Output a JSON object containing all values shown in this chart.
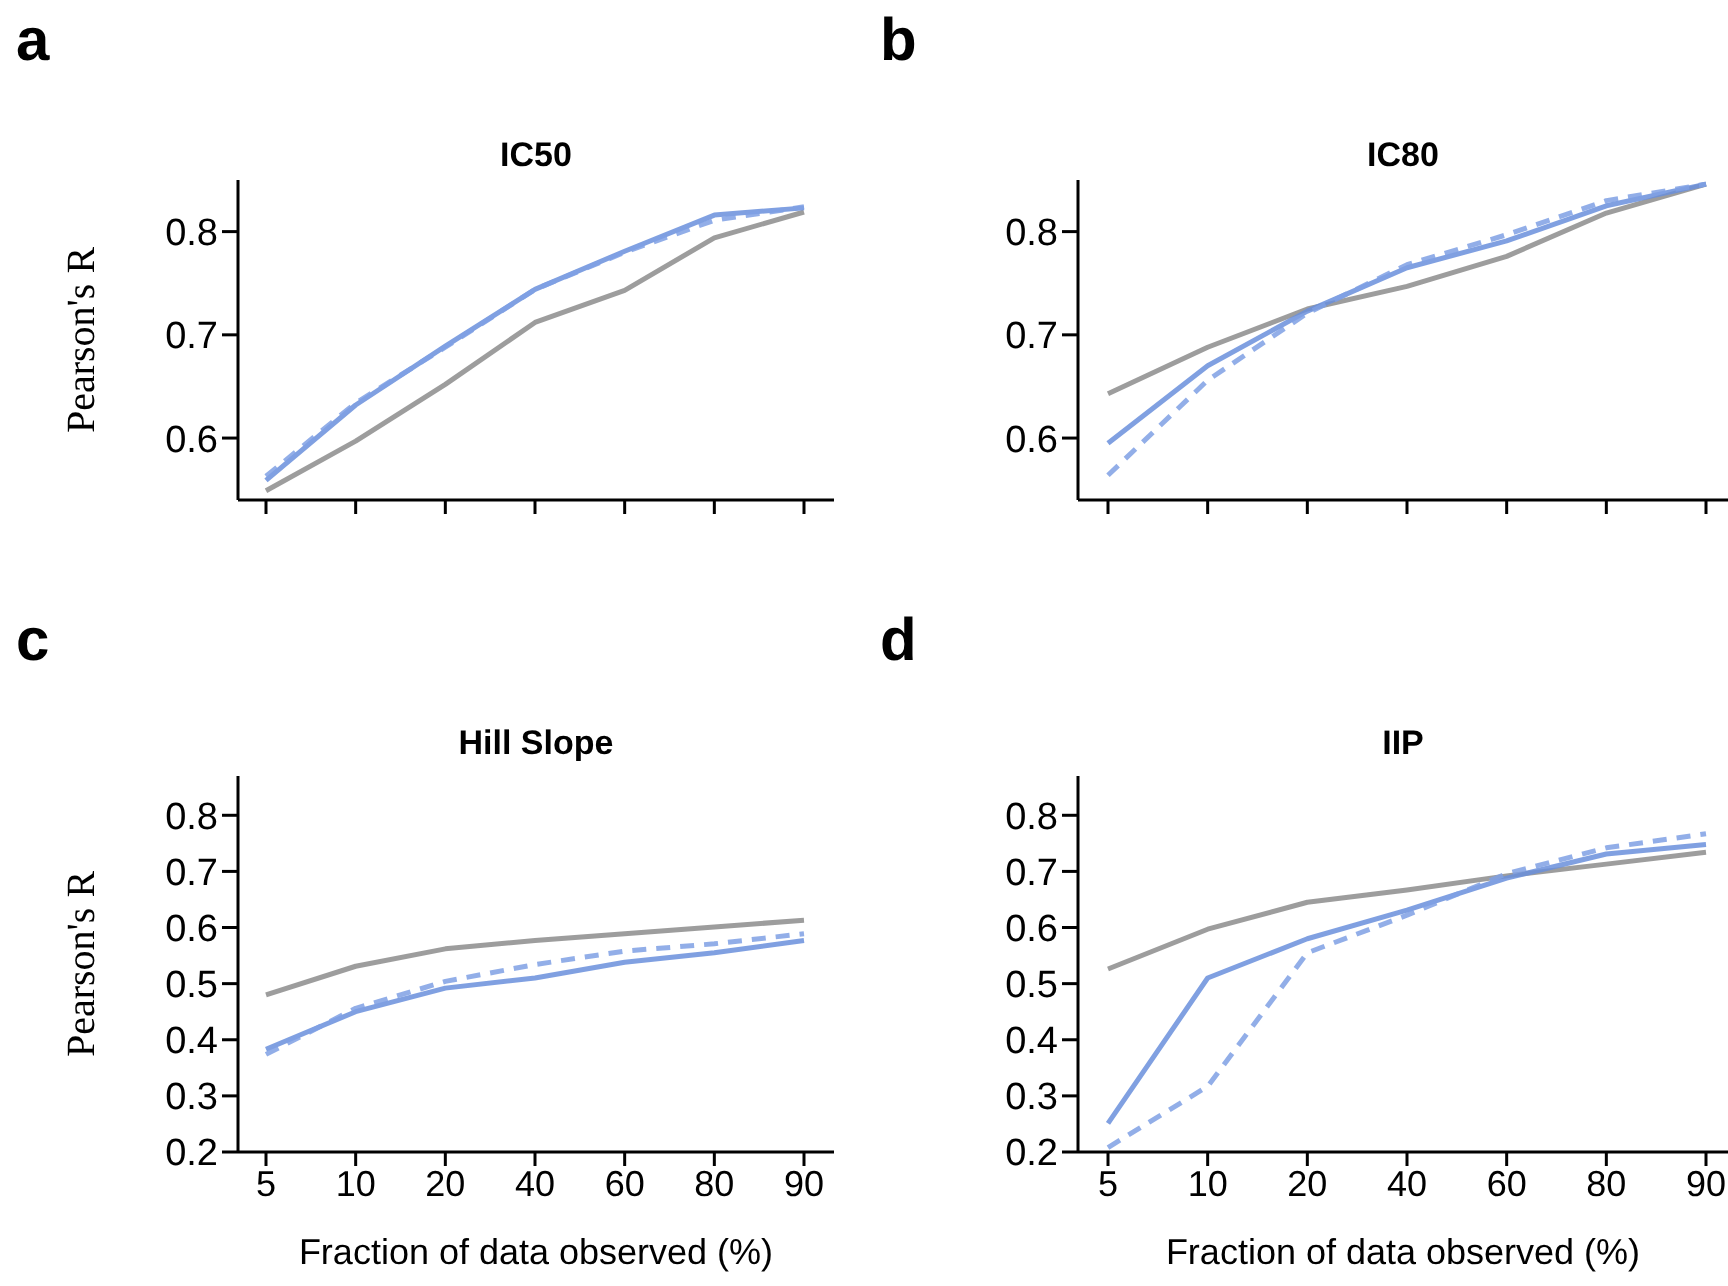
{
  "chart_data": [
    {
      "type": "line",
      "title": "IC50",
      "ylabel": "Pearson's R",
      "annotations": [
        "a"
      ],
      "categories": [
        "5",
        "10",
        "20",
        "40",
        "60",
        "80",
        "90"
      ],
      "ylim": [
        0.54,
        0.85
      ],
      "yticks": [
        0.6,
        0.7,
        0.8
      ],
      "tick_labels": "y",
      "marker": "none",
      "grid": false,
      "legend": false,
      "series": [
        {
          "color": "#8c8c8c",
          "line_style": "solid",
          "values": [
            0.549,
            0.597,
            0.652,
            0.712,
            0.743,
            0.794,
            0.819
          ]
        },
        {
          "color": "#6a8fdc",
          "line_style": "solid",
          "values": [
            0.559,
            0.632,
            0.689,
            0.744,
            0.781,
            0.816,
            0.823
          ]
        },
        {
          "color": "#7fa0e4",
          "line_style": "dashed",
          "values": [
            0.563,
            0.634,
            0.688,
            0.744,
            0.78,
            0.811,
            0.824
          ]
        }
      ]
    },
    {
      "type": "line",
      "title": "IC80",
      "annotations": [
        "b"
      ],
      "categories": [
        "5",
        "10",
        "20",
        "40",
        "60",
        "80",
        "90"
      ],
      "ylim": [
        0.54,
        0.85
      ],
      "yticks": [
        0.6,
        0.7,
        0.8
      ],
      "tick_labels": "y",
      "marker": "none",
      "grid": false,
      "legend": false,
      "series": [
        {
          "color": "#8c8c8c",
          "line_style": "solid",
          "values": [
            0.643,
            0.688,
            0.725,
            0.747,
            0.776,
            0.818,
            0.846
          ]
        },
        {
          "color": "#6a8fdc",
          "line_style": "solid",
          "values": [
            0.595,
            0.67,
            0.723,
            0.765,
            0.791,
            0.825,
            0.846
          ]
        },
        {
          "color": "#7fa0e4",
          "line_style": "dashed",
          "values": [
            0.564,
            0.656,
            0.721,
            0.768,
            0.797,
            0.83,
            0.846
          ]
        }
      ]
    },
    {
      "type": "line",
      "title": "Hill Slope",
      "xlabel": "Fraction of data observed (%)",
      "ylabel": "Pearson's R",
      "annotations": [
        "c"
      ],
      "categories": [
        "5",
        "10",
        "20",
        "40",
        "60",
        "80",
        "90"
      ],
      "ylim": [
        0.2,
        0.87
      ],
      "yticks": [
        0.2,
        0.3,
        0.4,
        0.5,
        0.6,
        0.7,
        0.8
      ],
      "marker": "none",
      "grid": false,
      "legend": false,
      "series": [
        {
          "color": "#8c8c8c",
          "line_style": "solid",
          "values": [
            0.48,
            0.531,
            0.562,
            0.577,
            0.589,
            0.601,
            0.613
          ]
        },
        {
          "color": "#6a8fdc",
          "line_style": "solid",
          "values": [
            0.383,
            0.45,
            0.492,
            0.51,
            0.538,
            0.555,
            0.577
          ]
        },
        {
          "color": "#7fa0e4",
          "line_style": "dashed",
          "values": [
            0.374,
            0.456,
            0.504,
            0.534,
            0.558,
            0.571,
            0.589
          ]
        }
      ]
    },
    {
      "type": "line",
      "title": "IIP",
      "xlabel": "Fraction of data observed (%)",
      "annotations": [
        "d"
      ],
      "categories": [
        "5",
        "10",
        "20",
        "40",
        "60",
        "80",
        "90"
      ],
      "ylim": [
        0.2,
        0.87
      ],
      "yticks": [
        0.2,
        0.3,
        0.4,
        0.5,
        0.6,
        0.7,
        0.8
      ],
      "marker": "none",
      "grid": false,
      "legend": false,
      "series": [
        {
          "color": "#8c8c8c",
          "line_style": "solid",
          "values": [
            0.526,
            0.597,
            0.645,
            0.667,
            0.692,
            0.713,
            0.734
          ]
        },
        {
          "color": "#6a8fdc",
          "line_style": "solid",
          "values": [
            0.251,
            0.51,
            0.58,
            0.631,
            0.688,
            0.731,
            0.748
          ]
        },
        {
          "color": "#7fa0e4",
          "line_style": "dashed",
          "values": [
            0.208,
            0.317,
            0.555,
            0.622,
            0.696,
            0.742,
            0.767
          ]
        }
      ]
    }
  ]
}
